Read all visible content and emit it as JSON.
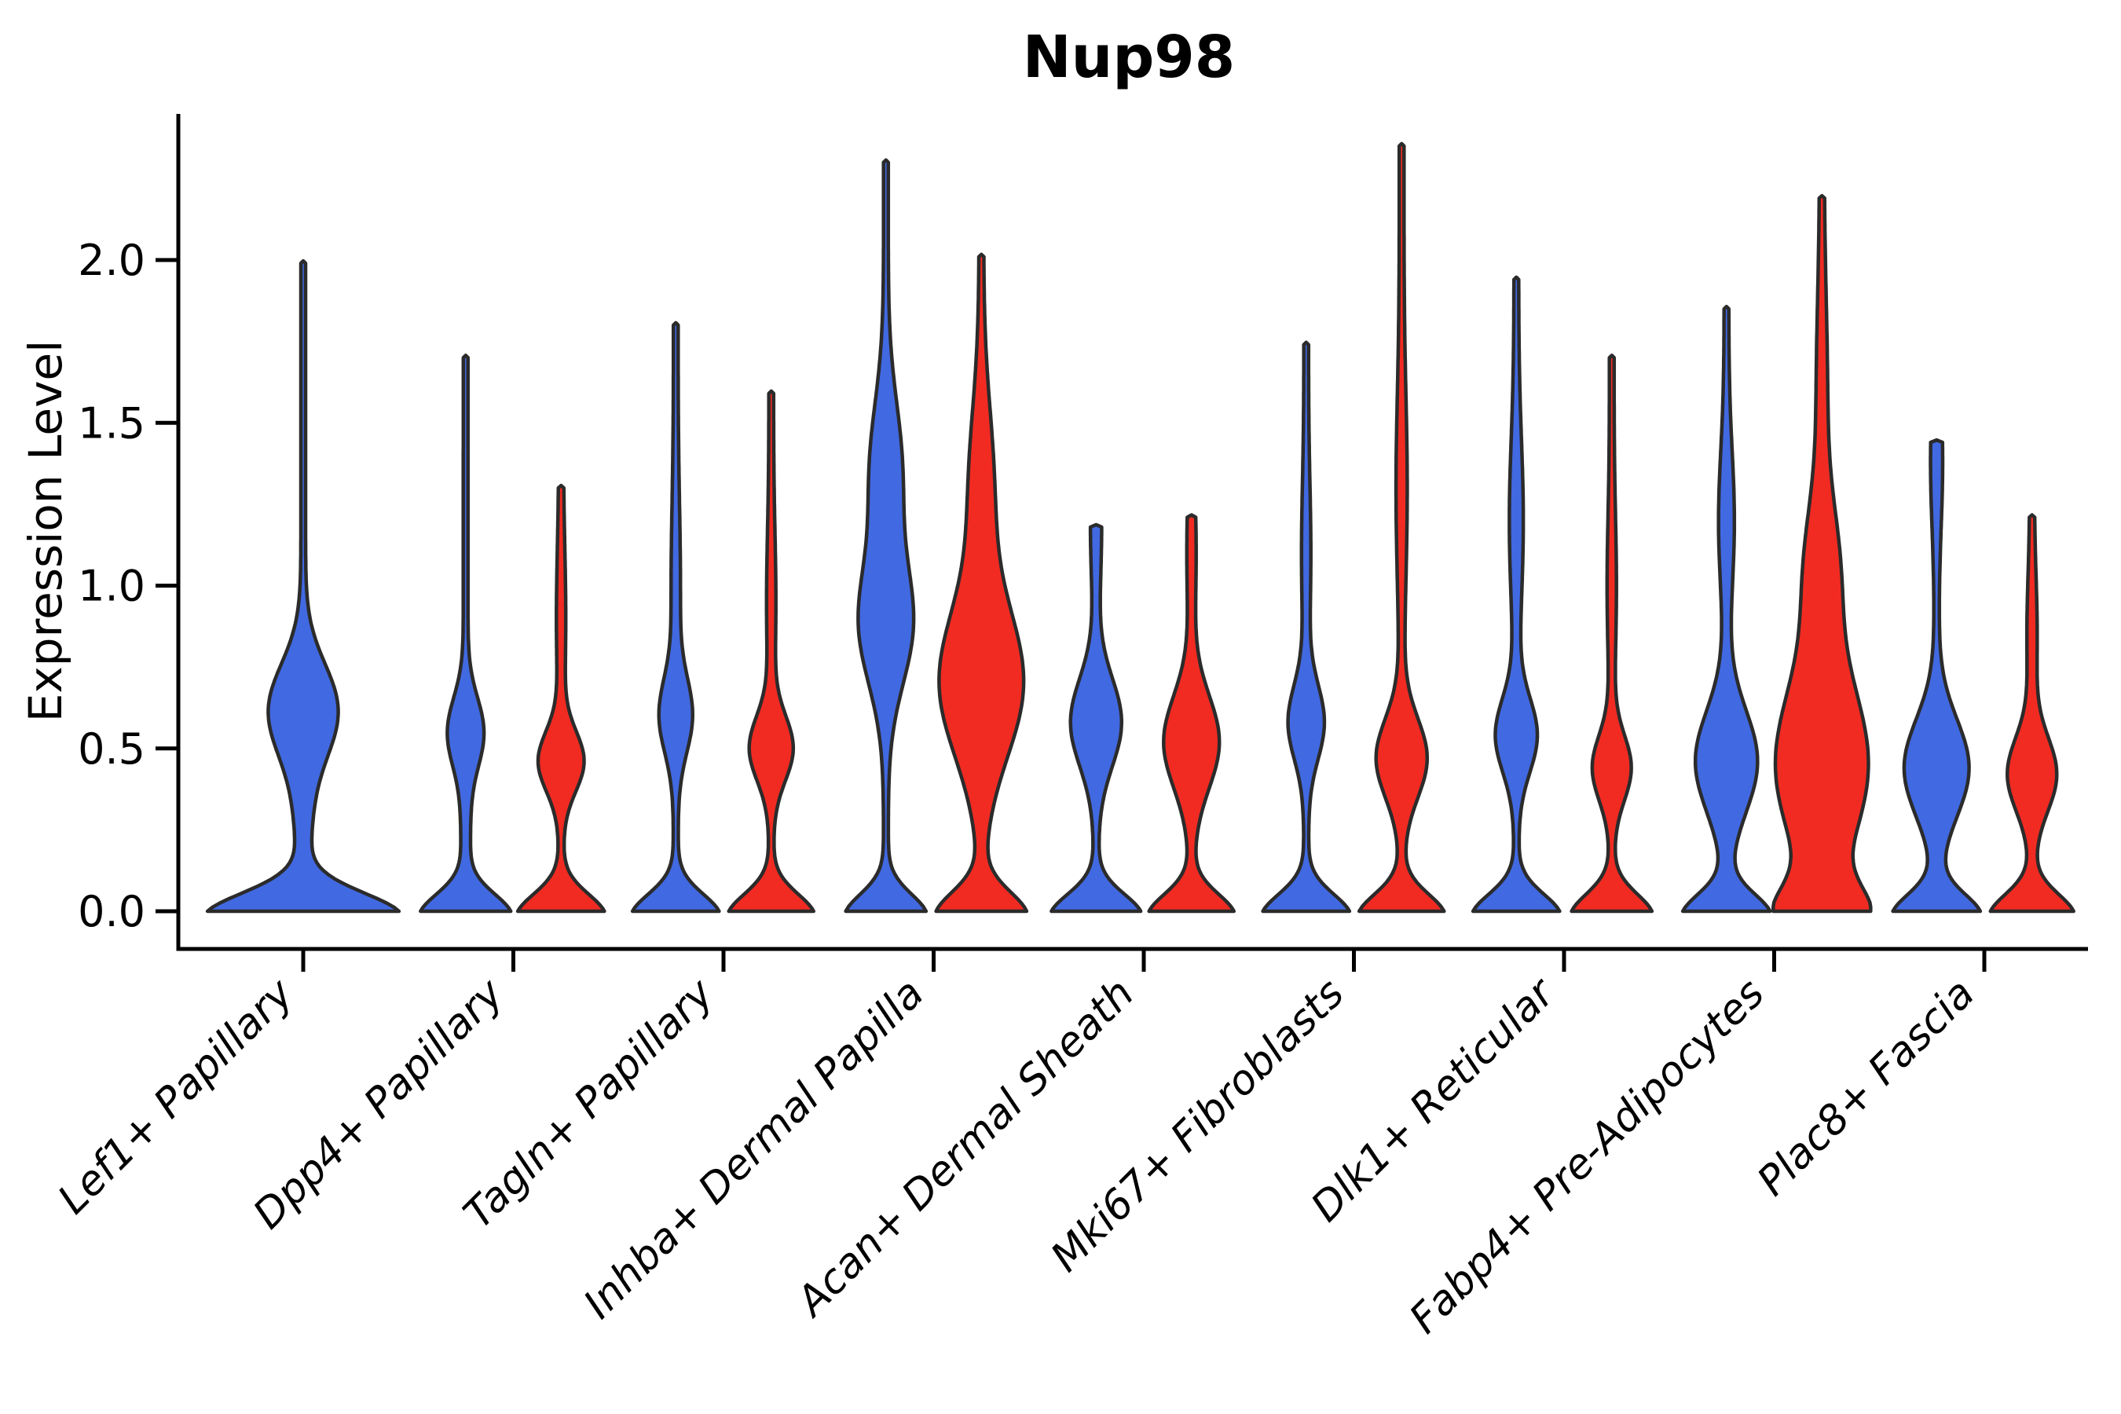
{
  "page": {
    "background": "#ffffff"
  },
  "chart_data": {
    "type": "violin",
    "title": "Nup98",
    "ylabel": "Expression Level",
    "xlabel": "",
    "ytick_labels": [
      "0.0",
      "0.5",
      "1.0",
      "1.5",
      "2.0"
    ],
    "ytick_values": [
      0.0,
      0.5,
      1.0,
      1.5,
      2.0
    ],
    "ylim": [
      -0.12,
      2.45
    ],
    "grid": false,
    "legend_position": "none",
    "x_tick_label_rotation_deg": 45,
    "x_tick_label_style": "italic",
    "categories": [
      "Lef1+ Papillary",
      "Dpp4+ Papillary",
      "Tagln+ Papillary",
      "Inhba+ Dermal Papilla",
      "Acan+ Dermal Sheath",
      "Mki67+ Fibroblasts",
      "Dlk1+ Reticular",
      "Fabp4+ Pre-Adipocytes",
      "Plac8+ Fascia"
    ],
    "colors": {
      "blue": "#4169E1",
      "red": "#F12B22",
      "edge": "#2B2B2B",
      "axis": "#000000"
    },
    "profile_format": "each component = [amplitude_fraction_of_half_width, center_expression, sigma_expression]; width(v) = halfwidth * min(1, sum(components))",
    "violins": [
      {
        "category": "Lef1+ Papillary",
        "group": "blue",
        "side": "full",
        "max_expression": 1.99,
        "profile": [
          [
            1.0,
            -0.02,
            0.105
          ],
          [
            0.33,
            0.62,
            0.2
          ],
          [
            0.06,
            0.3,
            0.25
          ]
        ]
      },
      {
        "category": "Dpp4+ Papillary",
        "group": "blue",
        "side": "left",
        "max_expression": 1.7,
        "profile": [
          [
            0.95,
            -0.02,
            0.1
          ],
          [
            0.34,
            0.55,
            0.15
          ],
          [
            0.05,
            0.25,
            0.2
          ]
        ]
      },
      {
        "category": "Dpp4+ Papillary",
        "group": "red",
        "side": "right",
        "max_expression": 1.3,
        "profile": [
          [
            0.92,
            -0.02,
            0.1
          ],
          [
            0.44,
            0.46,
            0.13
          ],
          [
            0.05,
            0.9,
            0.3
          ]
        ]
      },
      {
        "category": "Tagln+ Papillary",
        "group": "blue",
        "side": "left",
        "max_expression": 1.8,
        "profile": [
          [
            0.92,
            -0.02,
            0.1
          ],
          [
            0.3,
            0.6,
            0.16
          ],
          [
            0.05,
            1.0,
            0.35
          ]
        ]
      },
      {
        "category": "Tagln+ Papillary",
        "group": "red",
        "side": "right",
        "max_expression": 1.59,
        "profile": [
          [
            0.9,
            -0.02,
            0.1
          ],
          [
            0.42,
            0.5,
            0.14
          ],
          [
            0.05,
            0.95,
            0.3
          ]
        ]
      },
      {
        "category": "Inhba+ Dermal Papilla",
        "group": "blue",
        "side": "left",
        "max_expression": 2.3,
        "profile": [
          [
            0.85,
            -0.02,
            0.1
          ],
          [
            0.52,
            0.88,
            0.26
          ],
          [
            0.3,
            1.35,
            0.3
          ]
        ]
      },
      {
        "category": "Inhba+ Dermal Papilla",
        "group": "red",
        "side": "right",
        "max_expression": 2.01,
        "profile": [
          [
            0.95,
            -0.02,
            0.11
          ],
          [
            0.85,
            0.7,
            0.32
          ],
          [
            0.22,
            1.3,
            0.35
          ]
        ]
      },
      {
        "category": "Acan+ Dermal Sheath",
        "group": "blue",
        "side": "left",
        "max_expression": 1.18,
        "profile": [
          [
            0.95,
            -0.02,
            0.1
          ],
          [
            0.5,
            0.58,
            0.19
          ],
          [
            0.07,
            1.18,
            0.25
          ]
        ]
      },
      {
        "category": "Acan+ Dermal Sheath",
        "group": "red",
        "side": "right",
        "max_expression": 1.21,
        "profile": [
          [
            0.9,
            -0.02,
            0.1
          ],
          [
            0.55,
            0.52,
            0.2
          ],
          [
            0.05,
            1.1,
            0.25
          ]
        ]
      },
      {
        "category": "Mki67+ Fibroblasts",
        "group": "blue",
        "side": "left",
        "max_expression": 1.74,
        "profile": [
          [
            0.92,
            -0.02,
            0.1
          ],
          [
            0.34,
            0.58,
            0.16
          ],
          [
            0.05,
            1.1,
            0.3
          ]
        ]
      },
      {
        "category": "Mki67+ Fibroblasts",
        "group": "red",
        "side": "right",
        "max_expression": 2.35,
        "profile": [
          [
            0.9,
            -0.02,
            0.1
          ],
          [
            0.5,
            0.47,
            0.17
          ],
          [
            0.07,
            1.3,
            0.4
          ]
        ]
      },
      {
        "category": "Dlk1+ Reticular",
        "group": "blue",
        "side": "left",
        "max_expression": 1.94,
        "profile": [
          [
            0.92,
            -0.02,
            0.1
          ],
          [
            0.4,
            0.54,
            0.16
          ],
          [
            0.1,
            1.2,
            0.35
          ]
        ]
      },
      {
        "category": "Dlk1+ Reticular",
        "group": "red",
        "side": "right",
        "max_expression": 1.7,
        "profile": [
          [
            0.85,
            -0.02,
            0.1
          ],
          [
            0.37,
            0.44,
            0.14
          ],
          [
            0.05,
            1.0,
            0.3
          ]
        ]
      },
      {
        "category": "Fabp4+ Pre-Adipocytes",
        "group": "blue",
        "side": "left",
        "max_expression": 1.85,
        "profile": [
          [
            0.92,
            -0.02,
            0.1
          ],
          [
            0.62,
            0.46,
            0.22
          ],
          [
            0.12,
            1.2,
            0.3
          ]
        ]
      },
      {
        "category": "Fabp4+ Pre-Adipocytes",
        "group": "red",
        "side": "right",
        "max_expression": 2.19,
        "profile": [
          [
            0.85,
            -0.02,
            0.13
          ],
          [
            0.95,
            0.45,
            0.36
          ],
          [
            0.3,
            1.05,
            0.28
          ],
          [
            0.07,
            1.6,
            0.4
          ]
        ]
      },
      {
        "category": "Plac8+ Fascia",
        "group": "blue",
        "side": "left",
        "max_expression": 1.44,
        "profile": [
          [
            0.92,
            -0.02,
            0.1
          ],
          [
            0.65,
            0.44,
            0.21
          ],
          [
            0.08,
            1.38,
            0.28
          ]
        ]
      },
      {
        "category": "Plac8+ Fascia",
        "group": "red",
        "side": "right",
        "max_expression": 1.21,
        "profile": [
          [
            0.88,
            -0.02,
            0.1
          ],
          [
            0.48,
            0.42,
            0.16
          ],
          [
            0.06,
            0.85,
            0.25
          ]
        ]
      }
    ]
  }
}
